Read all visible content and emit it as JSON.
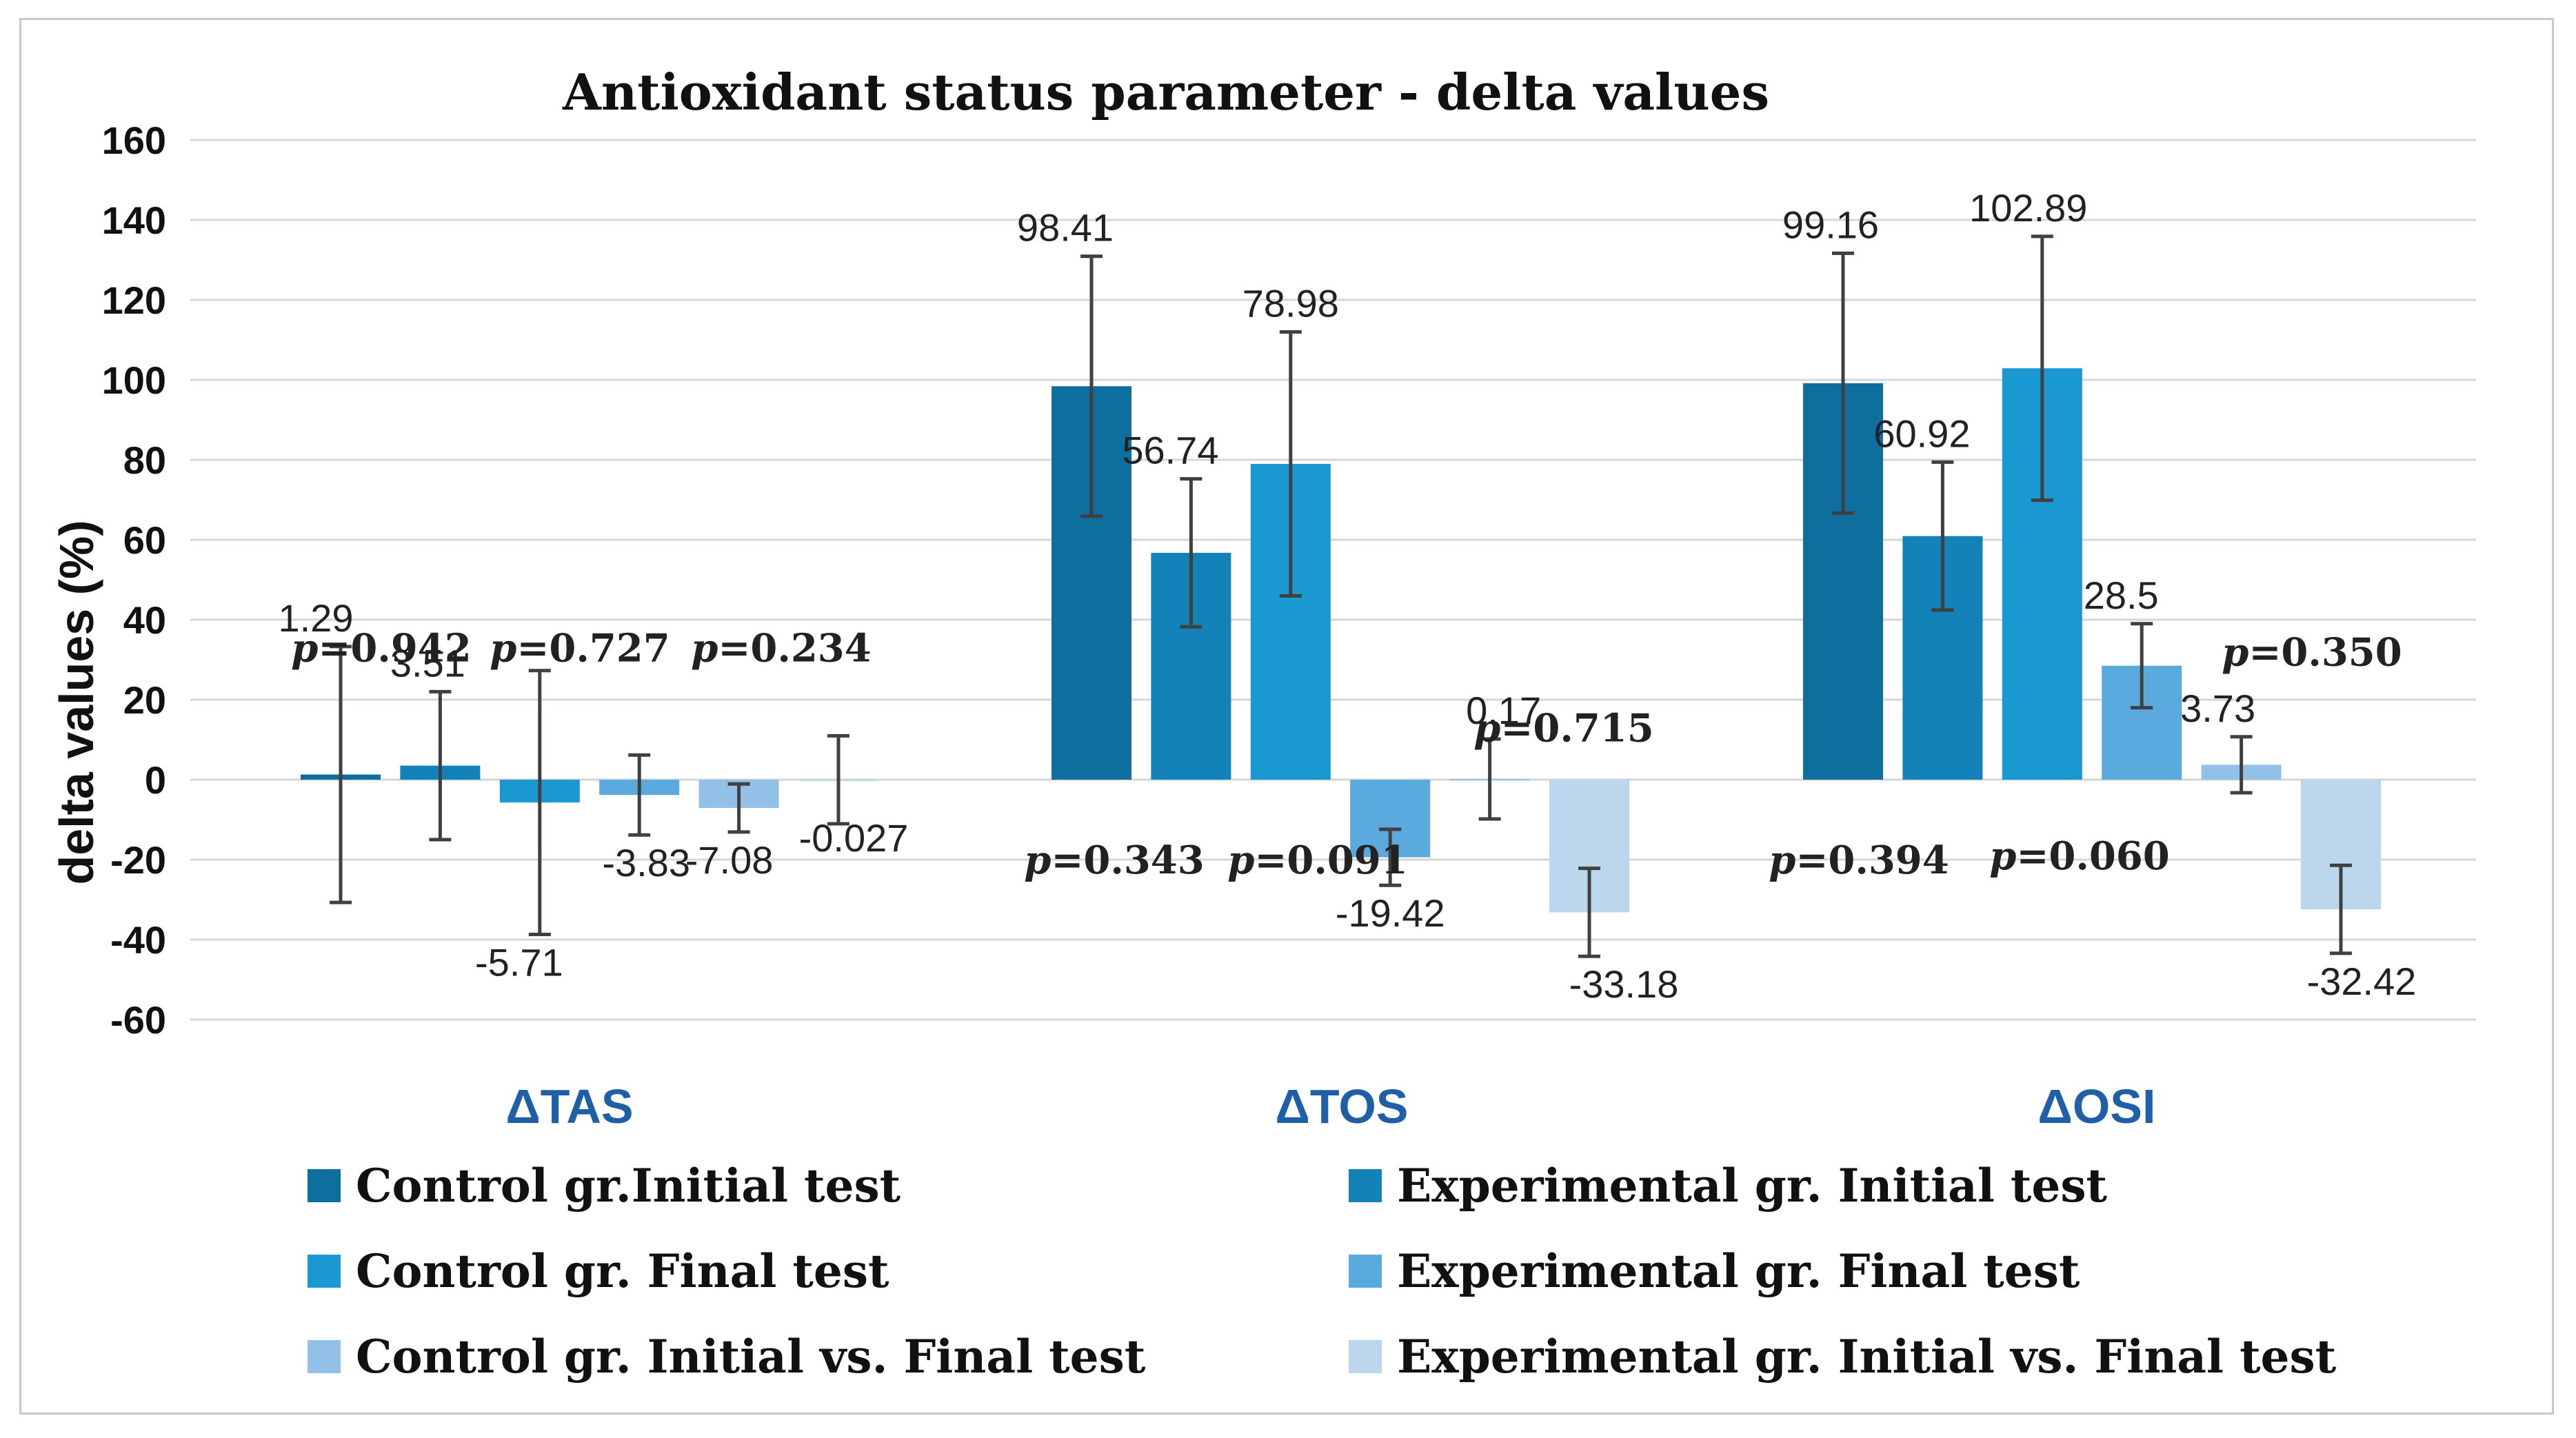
{
  "chart_data": {
    "type": "bar",
    "title": "Antioxidant status parameter - delta values",
    "xlabel": "",
    "ylabel": "delta values (%)",
    "ylim": [
      -60,
      160
    ],
    "yticks": [
      160,
      140,
      120,
      100,
      80,
      60,
      40,
      20,
      0,
      -20,
      -40,
      -60
    ],
    "grid": true,
    "legend_position": "bottom",
    "categories": [
      "ΔTAS",
      "ΔTOS",
      "ΔOSI"
    ],
    "series": [
      {
        "name": "Control gr.Initial test",
        "color": "#0e6f9e",
        "values": [
          1.29,
          98.41,
          99.16
        ],
        "labels": [
          "1.29",
          "98.41",
          "99.16"
        ],
        "errors": [
          32,
          32.5,
          32.5
        ]
      },
      {
        "name": "Experimental gr. Initial test",
        "color": "#1282b8",
        "values": [
          3.51,
          56.74,
          60.92
        ],
        "labels": [
          "3.51",
          "56.74",
          "60.92"
        ],
        "errors": [
          18.5,
          18.5,
          18.5
        ]
      },
      {
        "name": "Control gr. Final test",
        "color": "#1998d1",
        "values": [
          -5.71,
          78.98,
          102.89
        ],
        "labels": [
          "-5.71",
          "78.98",
          "102.89"
        ],
        "errors": [
          33,
          33,
          33
        ]
      },
      {
        "name": "Experimental gr. Final test",
        "color": "#5aaadd",
        "values": [
          -3.83,
          -19.42,
          28.5
        ],
        "labels": [
          "-3.83",
          "-19.42",
          "28.5"
        ],
        "errors": [
          10,
          7,
          10.5
        ]
      },
      {
        "name": "Control gr. Initial vs. Final test",
        "color": "#93c0e6",
        "values": [
          -7.08,
          0.17,
          3.73
        ],
        "labels": [
          "-7.08",
          "0.17",
          "3.73"
        ],
        "errors": [
          6,
          10,
          7
        ]
      },
      {
        "name": "Experimental gr. Initial vs. Final test",
        "color": "#bcd6ee",
        "values": [
          -0.027,
          -33.18,
          -32.42
        ],
        "labels": [
          "-0.027",
          "-33.18",
          "-32.42"
        ],
        "errors": [
          11,
          11,
          11
        ]
      }
    ],
    "annotations": [
      {
        "prefix": "p",
        "text": "=0.942",
        "category": "ΔTAS",
        "y": 33
      },
      {
        "prefix": "p",
        "text": "=0.727",
        "category": "ΔTAS",
        "y": 33
      },
      {
        "prefix": "p",
        "text": "=0.234",
        "category": "ΔTAS",
        "y": 33
      },
      {
        "prefix": "p",
        "text": "=0.343",
        "category": "ΔTOS",
        "y": -20
      },
      {
        "prefix": "p",
        "text": "=0.091",
        "category": "ΔTOS",
        "y": -20
      },
      {
        "prefix": "p",
        "text": "=0.715",
        "category": "ΔTOS",
        "y": 13
      },
      {
        "prefix": "p",
        "text": "=0.394",
        "category": "ΔOSI",
        "y": -20
      },
      {
        "prefix": "p",
        "text": "=0.060",
        "category": "ΔOSI",
        "y": -19
      },
      {
        "prefix": "p",
        "text": "=0.350",
        "category": "ΔOSI",
        "y": 32
      }
    ]
  }
}
